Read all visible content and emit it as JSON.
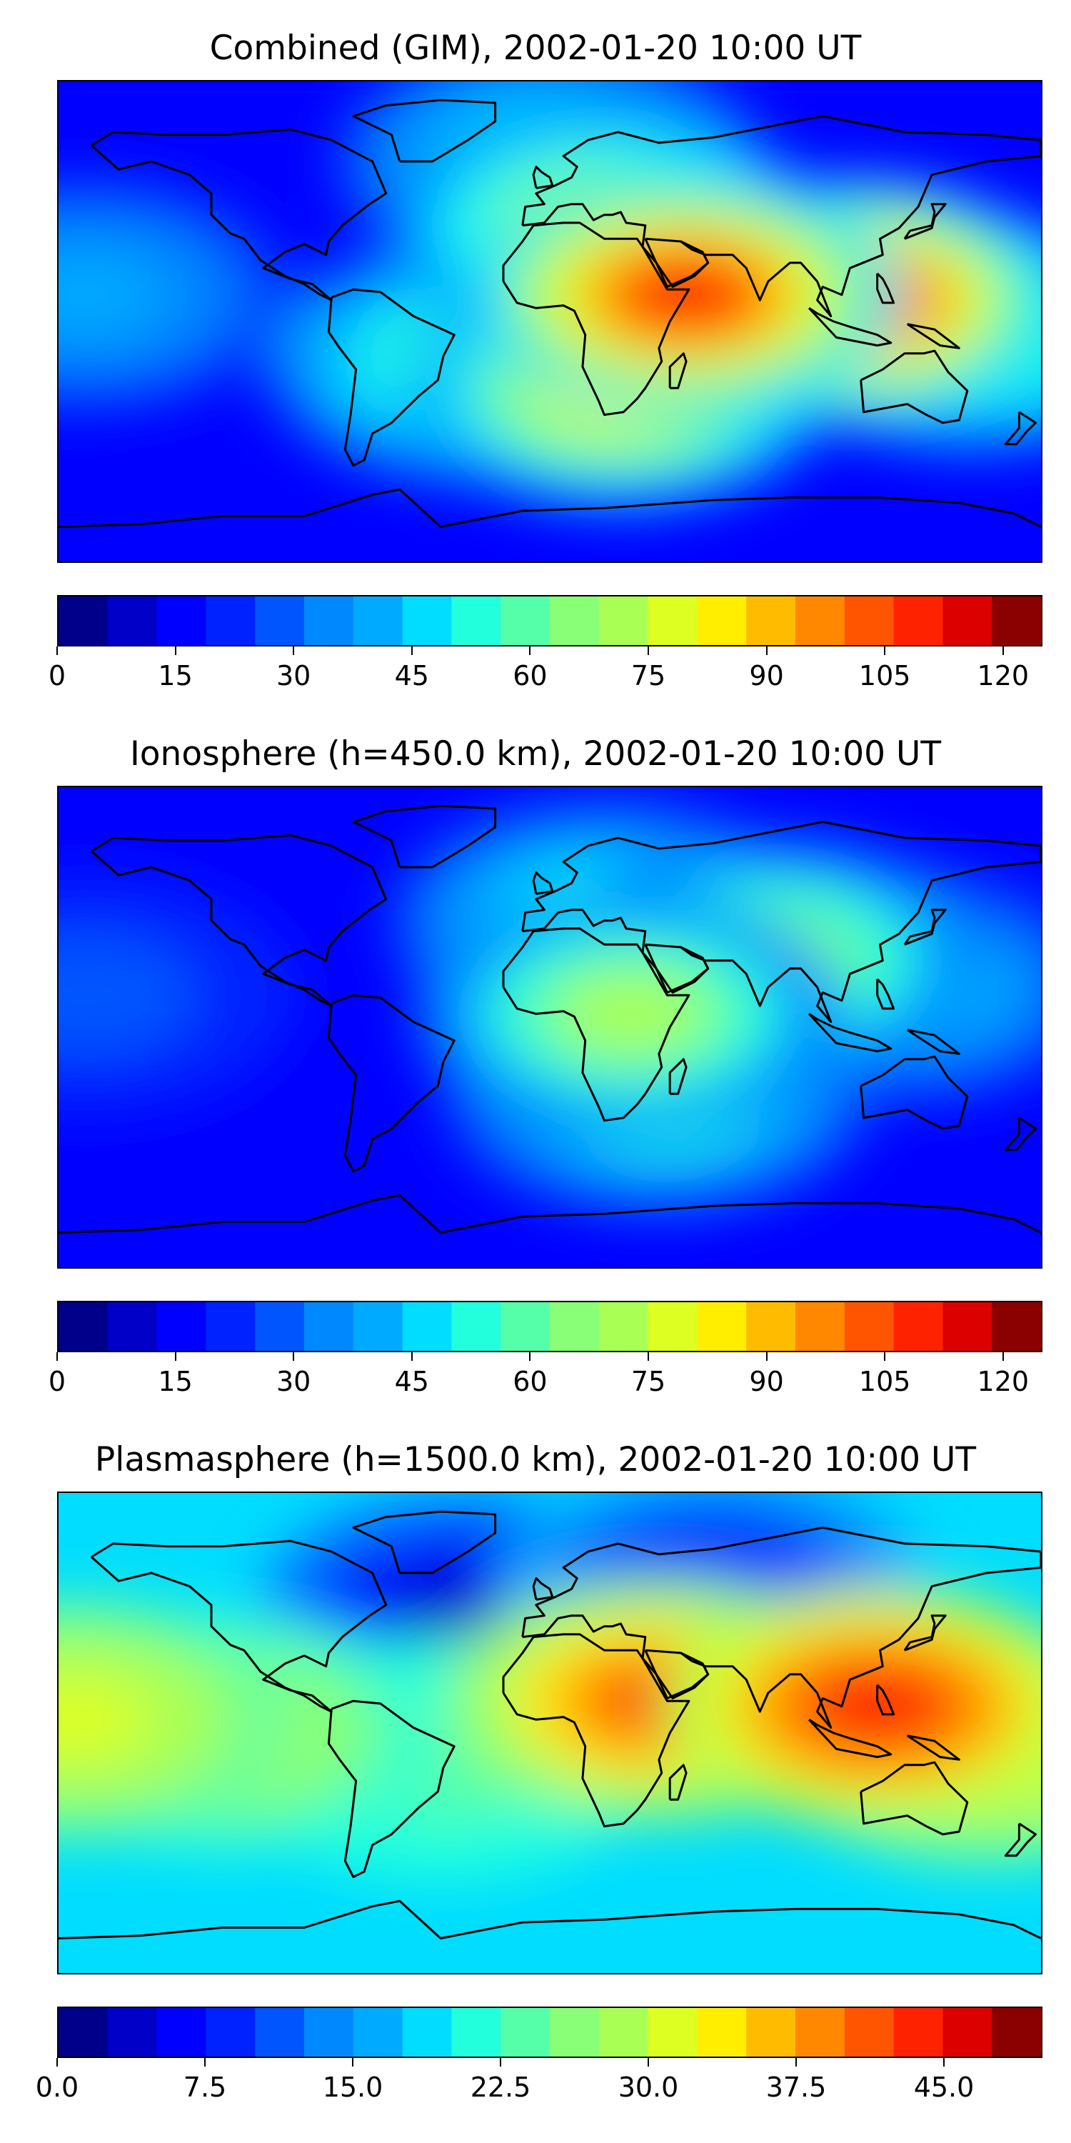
{
  "figure": {
    "colormap": [
      "#00008b",
      "#0000c8",
      "#0000ff",
      "#0022ff",
      "#0055ff",
      "#0088ff",
      "#00aaff",
      "#00ddff",
      "#22ffdd",
      "#55ffaa",
      "#88ff77",
      "#aaff55",
      "#ddff22",
      "#ffee00",
      "#ffbb00",
      "#ff8800",
      "#ff5500",
      "#ff2200",
      "#dd0000",
      "#8b0000"
    ]
  },
  "chart_data": [
    {
      "type": "heatmap",
      "title": "Combined (GIM), 2002-01-20 10:00 UT",
      "colorbar": {
        "min": 0,
        "max": 125,
        "ticks": [
          0,
          15,
          30,
          45,
          60,
          75,
          90,
          105,
          120
        ],
        "tick_labels": [
          "0",
          "15",
          "30",
          "45",
          "60",
          "75",
          "90",
          "105",
          "120"
        ]
      },
      "field": {
        "background": 16,
        "blobs": [
          {
            "lon": 50,
            "lat": 10,
            "value": 108
          },
          {
            "lon": 110,
            "lat": 8,
            "value": 104
          },
          {
            "lon": 20,
            "lat": 35,
            "value": 72
          },
          {
            "lon": 25,
            "lat": -25,
            "value": 80
          },
          {
            "lon": -25,
            "lat": -15,
            "value": 60
          },
          {
            "lon": 155,
            "lat": -5,
            "value": 58
          },
          {
            "lon": -170,
            "lat": 10,
            "value": 40
          },
          {
            "lon": 0,
            "lat": 60,
            "value": 50
          }
        ]
      }
    },
    {
      "type": "heatmap",
      "title": "Ionosphere  (h=450.0 km), 2002-01-20 10:00 UT",
      "colorbar": {
        "min": 0,
        "max": 125,
        "ticks": [
          0,
          15,
          30,
          45,
          60,
          75,
          90,
          105,
          120
        ],
        "tick_labels": [
          "0",
          "15",
          "30",
          "45",
          "60",
          "75",
          "90",
          "105",
          "120"
        ]
      },
      "field": {
        "background": 14,
        "blobs": [
          {
            "lon": 30,
            "lat": 5,
            "value": 70
          },
          {
            "lon": 80,
            "lat": 25,
            "value": 68
          },
          {
            "lon": 20,
            "lat": 40,
            "value": 55
          },
          {
            "lon": 40,
            "lat": -25,
            "value": 58
          },
          {
            "lon": 130,
            "lat": 15,
            "value": 45
          },
          {
            "lon": -170,
            "lat": 12,
            "value": 30
          }
        ]
      }
    },
    {
      "type": "heatmap",
      "title": "Plasmasphere (h=1500.0 km), 2002-01-20 10:00 UT",
      "colorbar": {
        "min": 0,
        "max": 50,
        "ticks": [
          0,
          7.5,
          15,
          22.5,
          30,
          37.5,
          45
        ],
        "tick_labels": [
          "0.0",
          "7.5",
          "15.0",
          "22.5",
          "30.0",
          "37.5",
          "45.0"
        ]
      },
      "field": {
        "background": 19,
        "blobs": [
          {
            "lon": 120,
            "lat": 10,
            "value": 44
          },
          {
            "lon": 40,
            "lat": 12,
            "value": 40
          },
          {
            "lon": 160,
            "lat": -5,
            "value": 34
          },
          {
            "lon": -175,
            "lat": 5,
            "value": 32
          },
          {
            "lon": -120,
            "lat": 0,
            "value": 28
          },
          {
            "lon": -40,
            "lat": -10,
            "value": 24
          },
          {
            "lon": -30,
            "lat": 45,
            "value": 4
          },
          {
            "lon": 60,
            "lat": 55,
            "value": 8
          }
        ]
      }
    }
  ]
}
